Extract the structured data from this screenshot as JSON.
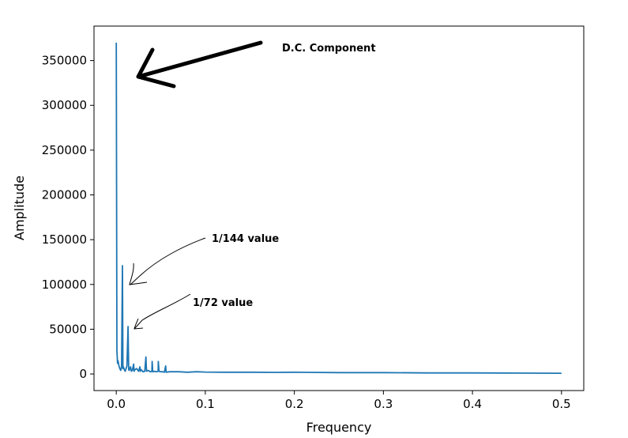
{
  "chart_data": {
    "type": "line",
    "title": "",
    "xlabel": "Frequency",
    "ylabel": "Amplitude",
    "xlim": [
      -0.025,
      0.525
    ],
    "ylim": [
      -18500,
      388500
    ],
    "xticks": [
      0.0,
      0.1,
      0.2,
      0.3,
      0.4,
      0.5
    ],
    "xtick_labels": [
      "0.0",
      "0.1",
      "0.2",
      "0.3",
      "0.4",
      "0.5"
    ],
    "yticks": [
      0,
      50000,
      100000,
      150000,
      200000,
      250000,
      300000,
      350000
    ],
    "ytick_labels": [
      "0",
      "50000",
      "100000",
      "150000",
      "200000",
      "250000",
      "300000",
      "350000"
    ],
    "grid": false,
    "line_color": "#1f77b4",
    "series": [
      {
        "x": [
          0.0,
          0.0007,
          0.0014,
          0.002,
          0.003,
          0.004,
          0.005,
          0.006,
          0.0069,
          0.0075,
          0.008,
          0.009,
          0.01,
          0.011,
          0.012,
          0.0132,
          0.0139,
          0.0145,
          0.016,
          0.017,
          0.018,
          0.0195,
          0.02,
          0.021,
          0.023,
          0.025,
          0.0265,
          0.027,
          0.028,
          0.03,
          0.032,
          0.0333,
          0.034,
          0.036,
          0.038,
          0.04,
          0.0403,
          0.041,
          0.043,
          0.045,
          0.047,
          0.0472,
          0.048,
          0.05,
          0.052,
          0.054,
          0.0555,
          0.056,
          0.06,
          0.07,
          0.08,
          0.09,
          0.1,
          0.12,
          0.15,
          0.18,
          0.2,
          0.22,
          0.25,
          0.28,
          0.3,
          0.35,
          0.4,
          0.45,
          0.5
        ],
        "y": [
          370000,
          26000,
          12000,
          15000,
          9000,
          6000,
          4000,
          8000,
          121000,
          6000,
          8000,
          5000,
          3000,
          6000,
          9000,
          53000,
          5000,
          4000,
          8000,
          3000,
          4000,
          11000,
          3000,
          5000,
          6000,
          3000,
          8000,
          3000,
          5000,
          2500,
          3000,
          19000,
          3000,
          4000,
          2500,
          3000,
          14000,
          2500,
          3000,
          2500,
          3000,
          14000,
          3000,
          2500,
          2500,
          2000,
          9000,
          2000,
          2500,
          2500,
          2000,
          2500,
          2200,
          2000,
          2000,
          1800,
          2000,
          1800,
          1500,
          1500,
          1500,
          1200,
          1200,
          1000,
          800
        ]
      }
    ]
  },
  "annotations": {
    "dc": "D.C. Component",
    "v144": "1/144 value",
    "v72": "1/72 value"
  }
}
